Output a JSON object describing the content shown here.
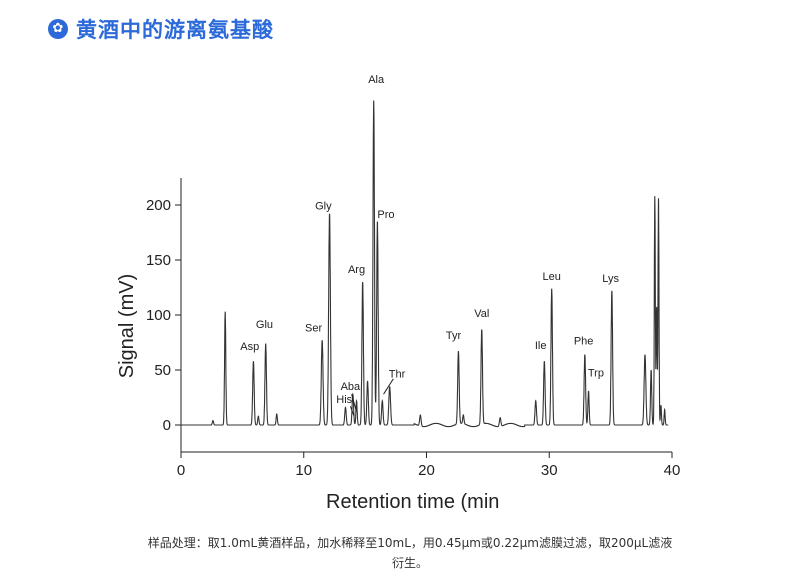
{
  "header": {
    "title": "黄酒中的游离氨基酸",
    "icon": "star-icon",
    "accent": "#2b6ad8"
  },
  "caption": {
    "line1": "样品处理：取1.0mL黄酒样品，加水稀释至10mL，用0.45μm或0.22μm滤膜过滤，取200μL滤液",
    "line2": "衍生。"
  },
  "chart_data": {
    "type": "line",
    "xlabel": "Retention time (min",
    "ylabel": "Signal (mV)",
    "xlim": [
      0,
      40
    ],
    "ylim": [
      -20,
      225
    ],
    "xticks": [
      0,
      10,
      20,
      30,
      40
    ],
    "yticks": [
      0,
      50,
      100,
      150,
      200
    ],
    "line_color": "#333333",
    "peaks": [
      {
        "x": 2.6,
        "h": 4,
        "w": 0.05
      },
      {
        "x": 3.6,
        "h": 103,
        "w": 0.05
      },
      {
        "x": 5.9,
        "h": 58,
        "w": 0.06
      },
      {
        "x": 6.3,
        "h": 8,
        "w": 0.05
      },
      {
        "x": 6.9,
        "h": 74,
        "w": 0.06
      },
      {
        "x": 7.8,
        "h": 10,
        "w": 0.05
      },
      {
        "x": 11.5,
        "h": 77,
        "w": 0.07
      },
      {
        "x": 12.1,
        "h": 192,
        "w": 0.07
      },
      {
        "x": 13.4,
        "h": 16,
        "w": 0.06
      },
      {
        "x": 14.0,
        "h": 28,
        "w": 0.06
      },
      {
        "x": 14.3,
        "h": 22,
        "w": 0.05
      },
      {
        "x": 14.8,
        "h": 130,
        "w": 0.06
      },
      {
        "x": 15.2,
        "h": 40,
        "w": 0.06
      },
      {
        "x": 15.7,
        "h": 295,
        "w": 0.06
      },
      {
        "x": 16.0,
        "h": 185,
        "w": 0.06
      },
      {
        "x": 16.4,
        "h": 22,
        "w": 0.06
      },
      {
        "x": 17.0,
        "h": 35,
        "w": 0.07
      },
      {
        "x": 19.5,
        "h": 10,
        "w": 0.06
      },
      {
        "x": 22.6,
        "h": 66,
        "w": 0.06
      },
      {
        "x": 23.0,
        "h": 8,
        "w": 0.05
      },
      {
        "x": 24.5,
        "h": 86,
        "w": 0.06
      },
      {
        "x": 26.0,
        "h": 8,
        "w": 0.06
      },
      {
        "x": 28.9,
        "h": 22,
        "w": 0.06
      },
      {
        "x": 29.6,
        "h": 58,
        "w": 0.06
      },
      {
        "x": 30.2,
        "h": 124,
        "w": 0.06
      },
      {
        "x": 32.9,
        "h": 64,
        "w": 0.06
      },
      {
        "x": 33.2,
        "h": 31,
        "w": 0.05
      },
      {
        "x": 35.1,
        "h": 122,
        "w": 0.06
      },
      {
        "x": 37.8,
        "h": 64,
        "w": 0.07
      },
      {
        "x": 38.3,
        "h": 50,
        "w": 0.05
      },
      {
        "x": 38.6,
        "h": 208,
        "w": 0.04
      },
      {
        "x": 38.75,
        "h": 107,
        "w": 0.04
      },
      {
        "x": 38.9,
        "h": 206,
        "w": 0.04
      },
      {
        "x": 39.1,
        "h": 18,
        "w": 0.04
      },
      {
        "x": 39.4,
        "h": 14,
        "w": 0.04
      }
    ],
    "annotations": [
      {
        "label": "Asp",
        "x": 5.6,
        "y": 68
      },
      {
        "label": "Glu",
        "x": 6.8,
        "y": 88
      },
      {
        "label": "Ser",
        "x": 10.8,
        "y": 85
      },
      {
        "label": "Gly",
        "x": 11.6,
        "y": 196
      },
      {
        "label": "Arg",
        "x": 14.3,
        "y": 138
      },
      {
        "label": "Ala",
        "x": 15.9,
        "y": 311
      },
      {
        "label": "Pro",
        "x": 16.7,
        "y": 188
      },
      {
        "label": "Aba",
        "x": 13.8,
        "y": 32
      },
      {
        "label": "His",
        "x": 13.3,
        "y": 20
      },
      {
        "label": "Thr",
        "x": 17.6,
        "y": 43
      },
      {
        "label": "Tyr",
        "x": 22.2,
        "y": 78
      },
      {
        "label": "Val",
        "x": 24.5,
        "y": 98
      },
      {
        "label": "Ile",
        "x": 29.3,
        "y": 69
      },
      {
        "label": "Leu",
        "x": 30.2,
        "y": 132
      },
      {
        "label": "Phe",
        "x": 32.8,
        "y": 73
      },
      {
        "label": "Trp",
        "x": 33.8,
        "y": 44
      },
      {
        "label": "Lys",
        "x": 35.0,
        "y": 130
      }
    ]
  }
}
